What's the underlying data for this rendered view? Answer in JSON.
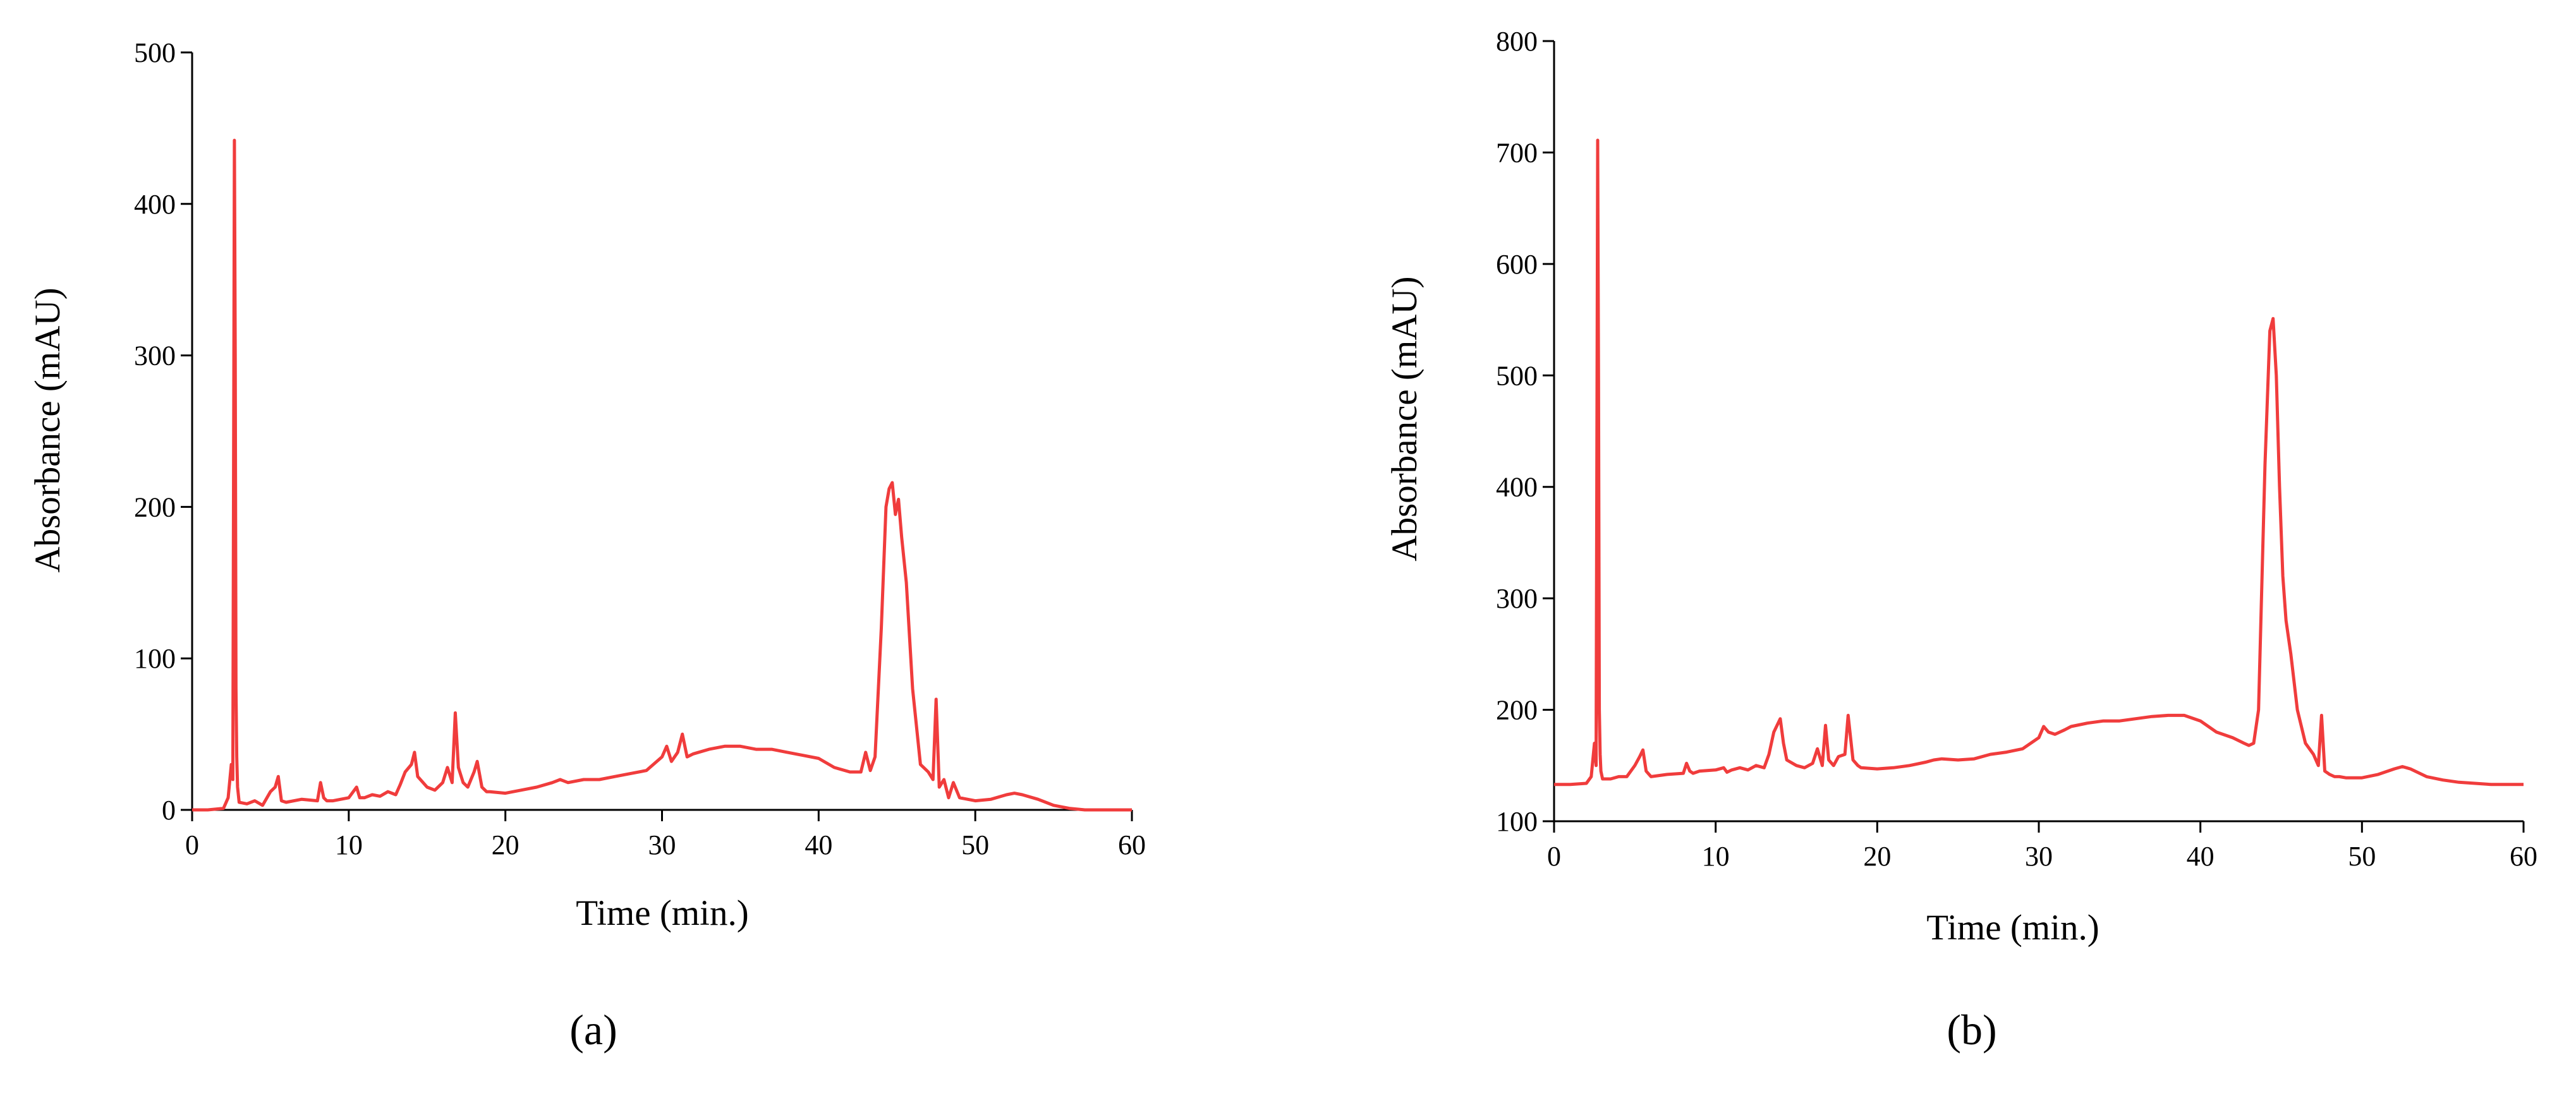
{
  "chart_data": [
    {
      "type": "line",
      "caption": "(a)",
      "x_label": "Time (min.)",
      "y_label": "Absorbance (mAU)",
      "xlim": [
        0,
        60
      ],
      "xticks": [
        0,
        10,
        20,
        30,
        40,
        50,
        60
      ],
      "ylim": [
        0,
        500
      ],
      "yticks": [
        0,
        100,
        200,
        300,
        400,
        500
      ],
      "x": [
        0,
        1,
        2,
        2.3,
        2.5,
        2.6,
        2.7,
        2.75,
        2.8,
        2.85,
        2.9,
        3.0,
        3.5,
        4,
        4.5,
        5,
        5.3,
        5.5,
        5.7,
        6,
        7,
        8,
        8.2,
        8.4,
        8.6,
        9,
        10,
        10.5,
        10.7,
        11,
        11.5,
        12,
        12.5,
        13,
        13.3,
        13.6,
        14,
        14.2,
        14.4,
        15,
        15.5,
        16,
        16.3,
        16.6,
        16.8,
        17,
        17.3,
        17.6,
        18,
        18.2,
        18.5,
        18.8,
        19,
        20,
        21,
        22,
        23,
        23.5,
        24,
        25,
        26,
        27,
        28,
        29,
        30,
        30.3,
        30.6,
        31,
        31.3,
        31.6,
        32,
        33,
        34,
        35,
        36,
        37,
        38,
        39,
        40,
        41,
        42,
        42.7,
        43,
        43.3,
        43.6,
        44,
        44.3,
        44.5,
        44.7,
        44.9,
        45.1,
        45.3,
        45.6,
        46,
        46.5,
        47,
        47.3,
        47.5,
        47.7,
        48,
        48.3,
        48.6,
        49,
        50,
        51,
        52,
        52.5,
        53,
        54,
        55,
        56,
        57,
        58,
        59,
        60
      ],
      "series": [
        {
          "color": "#f03c3c",
          "values": [
            0,
            0,
            1,
            8,
            30,
            20,
            442,
            300,
            80,
            35,
            15,
            5,
            4,
            6,
            3,
            12,
            15,
            22,
            6,
            5,
            7,
            6,
            18,
            8,
            6,
            6,
            8,
            15,
            8,
            8,
            10,
            9,
            12,
            10,
            17,
            25,
            30,
            38,
            22,
            15,
            13,
            18,
            28,
            18,
            64,
            28,
            18,
            15,
            25,
            32,
            15,
            12,
            12,
            11,
            13,
            15,
            18,
            20,
            18,
            20,
            20,
            22,
            24,
            26,
            35,
            42,
            32,
            38,
            50,
            35,
            37,
            40,
            42,
            42,
            40,
            40,
            38,
            36,
            34,
            28,
            25,
            25,
            38,
            26,
            35,
            120,
            200,
            212,
            216,
            195,
            205,
            180,
            150,
            80,
            30,
            25,
            20,
            73,
            15,
            20,
            8,
            18,
            8,
            6,
            7,
            10,
            11,
            10,
            7,
            3,
            1,
            0,
            0,
            0,
            0
          ]
        }
      ]
    },
    {
      "type": "line",
      "caption": "(b)",
      "x_label": "Time (min.)",
      "y_label": "Absorbance (mAU)",
      "xlim": [
        0,
        60
      ],
      "xticks": [
        0,
        10,
        20,
        30,
        40,
        50,
        60
      ],
      "ylim": [
        100,
        800
      ],
      "yticks": [
        100,
        200,
        300,
        400,
        500,
        600,
        700,
        800
      ],
      "x": [
        0,
        1,
        2,
        2.3,
        2.5,
        2.6,
        2.7,
        2.75,
        2.8,
        2.85,
        2.9,
        3.0,
        3.5,
        4,
        4.5,
        5,
        5.3,
        5.5,
        5.7,
        6,
        7,
        8,
        8.2,
        8.4,
        8.6,
        9,
        10,
        10.5,
        10.7,
        11,
        11.5,
        12,
        12.5,
        13,
        13.3,
        13.6,
        14,
        14.2,
        14.4,
        15,
        15.5,
        16,
        16.3,
        16.6,
        16.8,
        17,
        17.3,
        17.6,
        18,
        18.2,
        18.5,
        18.8,
        19,
        20,
        21,
        22,
        23,
        23.5,
        24,
        25,
        26,
        27,
        28,
        29,
        30,
        30.3,
        30.6,
        31,
        31.3,
        31.6,
        32,
        33,
        34,
        35,
        36,
        37,
        38,
        39,
        40,
        41,
        42,
        42.7,
        43,
        43.3,
        43.6,
        44,
        44.3,
        44.5,
        44.7,
        44.9,
        45.1,
        45.3,
        45.6,
        46,
        46.5,
        47,
        47.3,
        47.5,
        47.7,
        48,
        48.3,
        48.6,
        49,
        50,
        51,
        52,
        52.5,
        53,
        54,
        55,
        56,
        57,
        58,
        59,
        60
      ],
      "series": [
        {
          "color": "#f03c3c",
          "values": [
            133,
            133,
            134,
            140,
            170,
            150,
            711,
            500,
            200,
            160,
            145,
            138,
            138,
            140,
            140,
            150,
            158,
            164,
            145,
            140,
            142,
            143,
            152,
            145,
            143,
            145,
            146,
            148,
            144,
            146,
            148,
            146,
            150,
            148,
            160,
            180,
            192,
            170,
            155,
            150,
            148,
            152,
            165,
            150,
            186,
            155,
            150,
            158,
            160,
            195,
            155,
            150,
            148,
            147,
            148,
            150,
            153,
            155,
            156,
            155,
            156,
            160,
            162,
            165,
            175,
            185,
            180,
            178,
            180,
            182,
            185,
            188,
            190,
            190,
            192,
            194,
            195,
            195,
            190,
            180,
            175,
            170,
            168,
            170,
            200,
            420,
            540,
            551,
            500,
            400,
            320,
            280,
            250,
            200,
            170,
            160,
            150,
            195,
            145,
            142,
            140,
            140,
            139,
            139,
            142,
            147,
            149,
            147,
            140,
            137,
            135,
            134,
            133,
            133,
            133
          ]
        }
      ]
    }
  ]
}
